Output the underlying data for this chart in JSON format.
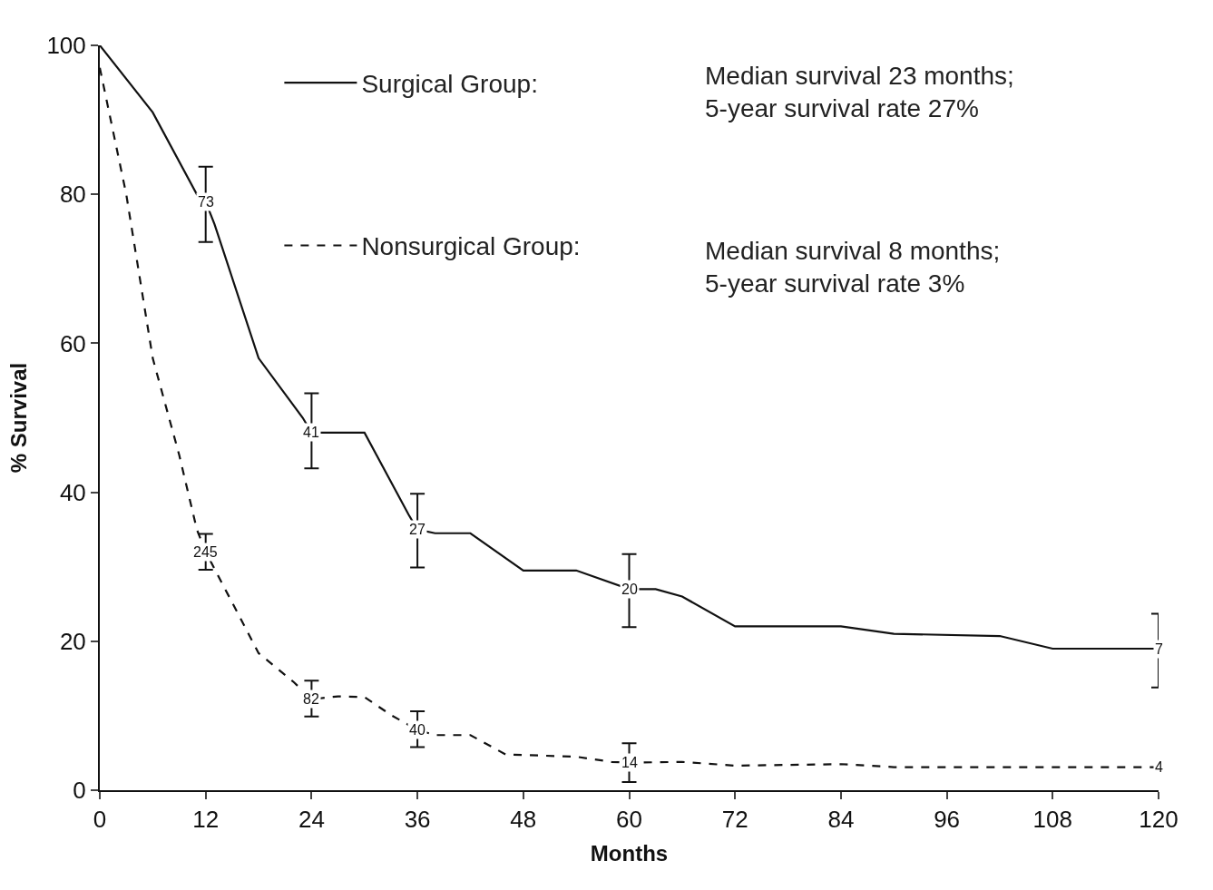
{
  "chart_data": {
    "type": "line",
    "xlabel": "Months",
    "ylabel": "% Survival",
    "xlim": [
      0,
      120
    ],
    "xticks": [
      0,
      12,
      24,
      36,
      48,
      60,
      72,
      84,
      96,
      108,
      120
    ],
    "ylim": [
      0,
      100
    ],
    "yticks": [
      0,
      20,
      40,
      60,
      80,
      100
    ],
    "legend": "top",
    "marker": "none",
    "series": [
      {
        "name": "Surgical Group:",
        "color": "#111111",
        "line_style": "solid",
        "x": [
          0,
          6,
          11,
          12,
          13,
          18,
          23,
          24,
          27,
          30,
          35,
          36,
          38,
          42,
          48,
          54,
          60,
          63,
          66,
          72,
          84,
          90,
          102,
          108,
          118,
          120
        ],
        "values": [
          100,
          91,
          80,
          79,
          76,
          58,
          50,
          48,
          48,
          48,
          37,
          35,
          34.5,
          34.5,
          29.5,
          29.5,
          27,
          27,
          26,
          22,
          22,
          21,
          20.7,
          19,
          19,
          19
        ],
        "errors": [
          null,
          null,
          null,
          [
            73.6,
            83.7
          ],
          null,
          null,
          null,
          [
            43.2,
            53.3
          ],
          null,
          null,
          null,
          [
            29.9,
            39.8
          ],
          null,
          null,
          null,
          null,
          [
            21.9,
            31.7
          ],
          null,
          null,
          null,
          null,
          null,
          null,
          null,
          null,
          [
            13.8,
            23.7
          ]
        ]
      },
      {
        "name": "Nonsurgical Group:",
        "color": "#111111",
        "line_style": "dashed",
        "x": [
          0,
          3,
          6,
          9,
          11,
          12,
          18,
          22,
          24,
          27,
          30,
          33,
          36,
          38,
          42,
          46,
          54,
          58,
          60,
          66,
          72,
          84,
          90,
          120
        ],
        "values": [
          97,
          80,
          58,
          45,
          35,
          32,
          18.4,
          14.5,
          12.2,
          12.6,
          12.5,
          10.1,
          8.1,
          7.4,
          7.4,
          4.8,
          4.5,
          3.8,
          3.7,
          3.8,
          3.3,
          3.5,
          3.1,
          3.1
        ],
        "errors": [
          null,
          null,
          null,
          null,
          null,
          [
            29.6,
            34.4
          ],
          null,
          null,
          [
            9.9,
            14.7
          ],
          null,
          null,
          null,
          [
            5.8,
            10.6
          ],
          null,
          null,
          null,
          null,
          null,
          [
            1.1,
            6.3
          ],
          null,
          null,
          null,
          null,
          null
        ]
      }
    ],
    "annotations": [
      "Median survival 23 months;\n5-year survival rate 27%",
      "Median survival 8 months;\n5-year survival rate 3%",
      {
        "text": "73",
        "x": 12,
        "y": 79
      },
      {
        "text": "41",
        "x": 24,
        "y": 48
      },
      {
        "text": "27",
        "x": 36,
        "y": 35
      },
      {
        "text": "20",
        "x": 60,
        "y": 27
      },
      {
        "text": "7",
        "x": 120,
        "y": 19
      },
      {
        "text": "245",
        "x": 12,
        "y": 32
      },
      {
        "text": "82",
        "x": 24,
        "y": 12.2
      },
      {
        "text": "40",
        "x": 36,
        "y": 8.1
      },
      {
        "text": "14",
        "x": 60,
        "y": 3.7
      },
      {
        "text": "4",
        "x": 120,
        "y": 3.1
      }
    ]
  }
}
